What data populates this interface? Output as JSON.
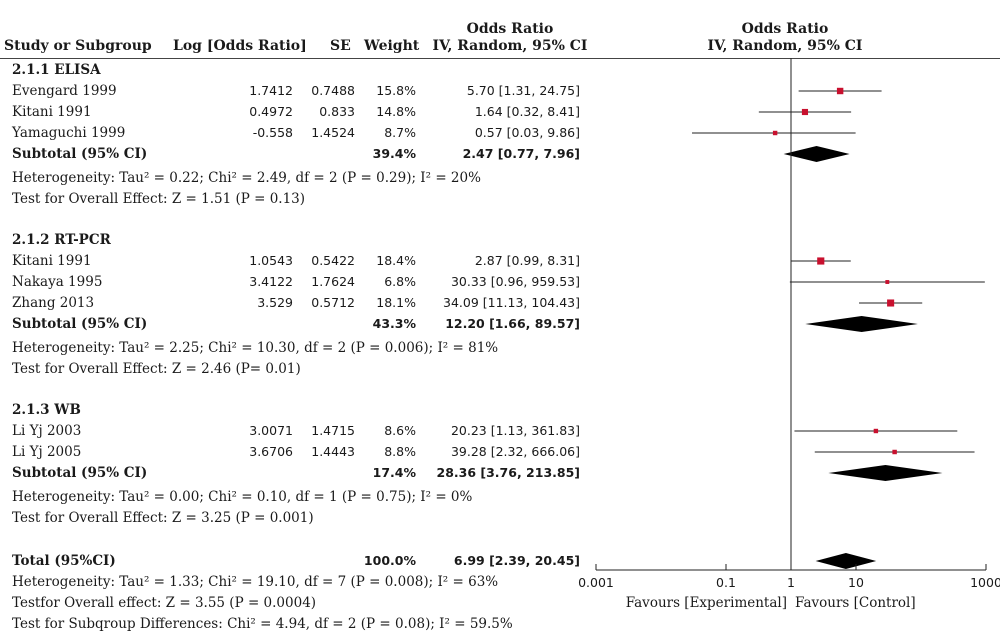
{
  "header": {
    "col_study": "Study or Subgroup",
    "col_logor": "Log [Odds Ratio]",
    "col_se": "SE",
    "col_weight": "Weight",
    "col_or_title": "Odds Ratio",
    "col_or_sub": "IV, Random, 95% CI",
    "plot_title": "Odds Ratio",
    "plot_sub": "IV, Random, 95% CI"
  },
  "chart_data": {
    "type": "forest",
    "x_scale": "log",
    "xlim": [
      0.001,
      1000
    ],
    "x_ticks": [
      0.001,
      0.1,
      1,
      10,
      1000
    ],
    "x_tick_labels": [
      "0.001",
      "0.1",
      "1",
      "10",
      "1000"
    ],
    "xlabel_left": "Favours [Experimental]",
    "xlabel_right": "Favours [Control]",
    "subgroups": [
      {
        "title": "2.1.1 ELISA",
        "studies": [
          {
            "name": "Evengard 1999",
            "log_or": "1.7412",
            "se": "0.7488",
            "weight": "15.8%",
            "ci_text": "5.70 [1.31, 24.75]",
            "or": 5.7,
            "lo": 1.31,
            "hi": 24.75
          },
          {
            "name": "Kitani 1991",
            "log_or": "0.4972",
            "se": "0.833",
            "weight": "14.8%",
            "ci_text": "1.64 [0.32, 8.41]",
            "or": 1.64,
            "lo": 0.32,
            "hi": 8.41
          },
          {
            "name": "Yamaguchi 1999",
            "log_or": "-0.558",
            "se": "1.4524",
            "weight": "8.7%",
            "ci_text": "0.57 [0.03, 9.86]",
            "or": 0.57,
            "lo": 0.03,
            "hi": 9.86
          }
        ],
        "subtotal": {
          "label": "Subtotal (95% CI)",
          "weight": "39.4%",
          "ci_text": "2.47 [0.77, 7.96]",
          "or": 2.47,
          "lo": 0.77,
          "hi": 7.96
        },
        "heterogeneity": "Heterogeneity: Tau² = 0.22; Chi² = 2.49, df = 2 (P = 0.29); I² = 20%",
        "overall": "Test for Overall Effect: Z = 1.51 (P = 0.13)"
      },
      {
        "title": "2.1.2 RT-PCR",
        "studies": [
          {
            "name": "Kitani 1991",
            "log_or": "1.0543",
            "se": "0.5422",
            "weight": "18.4%",
            "ci_text": "2.87 [0.99, 8.31]",
            "or": 2.87,
            "lo": 0.99,
            "hi": 8.31
          },
          {
            "name": "Nakaya 1995",
            "log_or": "3.4122",
            "se": "1.7624",
            "weight": "6.8%",
            "ci_text": "30.33 [0.96, 959.53]",
            "or": 30.33,
            "lo": 0.96,
            "hi": 959.53
          },
          {
            "name": "Zhang 2013",
            "log_or": "3.529",
            "se": "0.5712",
            "weight": "18.1%",
            "ci_text": "34.09 [11.13, 104.43]",
            "or": 34.09,
            "lo": 11.13,
            "hi": 104.43
          }
        ],
        "subtotal": {
          "label": "Subtotal (95% CI)",
          "weight": "43.3%",
          "ci_text": "12.20 [1.66, 89.57]",
          "or": 12.2,
          "lo": 1.66,
          "hi": 89.57
        },
        "heterogeneity": "Heterogeneity: Tau² = 2.25; Chi² = 10.30, df = 2 (P = 0.006); I² = 81%",
        "overall": "Test for Overall Effect: Z = 2.46 (P= 0.01)"
      },
      {
        "title": "2.1.3 WB",
        "studies": [
          {
            "name": "Li Yj 2003",
            "log_or": "3.0071",
            "se": "1.4715",
            "weight": "8.6%",
            "ci_text": "20.23 [1.13, 361.83]",
            "or": 20.23,
            "lo": 1.13,
            "hi": 361.83
          },
          {
            "name": "Li Yj 2005",
            "log_or": "3.6706",
            "se": "1.4443",
            "weight": "8.8%",
            "ci_text": "39.28 [2.32, 666.06]",
            "or": 39.28,
            "lo": 2.32,
            "hi": 666.06
          }
        ],
        "subtotal": {
          "label": "Subtotal (95% CI)",
          "weight": "17.4%",
          "ci_text": "28.36 [3.76, 213.85]",
          "or": 28.36,
          "lo": 3.76,
          "hi": 213.85
        },
        "heterogeneity": "Heterogeneity: Tau² = 0.00; Chi² = 0.10, df = 1 (P = 0.75); I² = 0%",
        "overall": "Test for Overall Effect: Z = 3.25 (P = 0.001)"
      }
    ],
    "total": {
      "label": "Total (95%CI)",
      "weight": "100.0%",
      "ci_text": "6.99 [2.39, 20.45]",
      "or": 6.99,
      "lo": 2.39,
      "hi": 20.45
    },
    "total_heterogeneity": "Heterogeneity: Tau² = 1.33; Chi² = 19.10, df = 7 (P = 0.008); I² = 63%",
    "total_overall": "Testfor Overall effect: Z = 3.55 (P = 0.0004)",
    "subgroup_diff": "Test for Subqroup Differences: Chi² = 4.94, df = 2 (P = 0.08); I² = 59.5%"
  },
  "colors": {
    "marker": "#c8102e",
    "line": "#222222",
    "diamond": "#000000"
  }
}
